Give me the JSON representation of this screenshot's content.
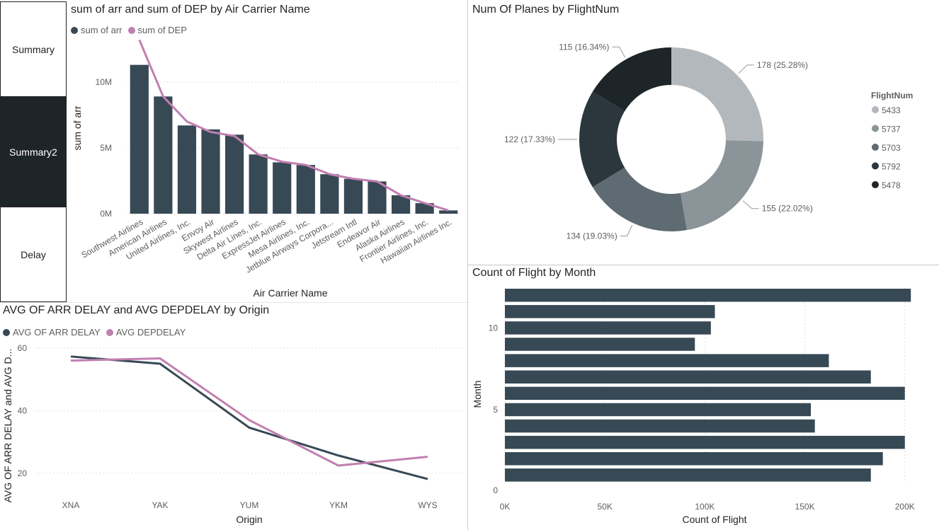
{
  "nav": {
    "summary": "Summary",
    "summary2": "Summary2",
    "delay": "Delay"
  },
  "chart_data": [
    {
      "type": "bar",
      "title": "sum of arr and sum of DEP by Air Carrier Name",
      "xlabel": "Air Carrier Name",
      "ylabel": "sum of arr",
      "ylim": [
        0,
        13000000
      ],
      "yticks": [
        "0M",
        "5M",
        "10M"
      ],
      "legend_position": "top-left",
      "categories": [
        "Southwest Airlines",
        "American Airlines",
        "United Airlines, Inc.",
        "Envoy Air",
        "Skywest Airlines",
        "Delta Air Lines, Inc.",
        "ExpressJet Airlines",
        "Mesa Airlines, Inc.",
        "Jetblue Airways Corpora...",
        "Jetstream Intl",
        "Endeavor Air",
        "Alaska Airlines",
        "Frontier Airlines, Inc.",
        "Hawaiian Airlines Inc."
      ],
      "series": [
        {
          "name": "sum of arr",
          "kind": "bar",
          "color": "#374955",
          "values": [
            11300000,
            8900000,
            6700000,
            6400000,
            6000000,
            4500000,
            3900000,
            3700000,
            3000000,
            2650000,
            2450000,
            1400000,
            800000,
            250000
          ]
        },
        {
          "name": "sum of DEP",
          "kind": "line",
          "color": "#c17fb0",
          "values": [
            13200000,
            8900000,
            7000000,
            6200000,
            5900000,
            4500000,
            3950000,
            3700000,
            3000000,
            2650000,
            2450000,
            1400000,
            800000,
            250000
          ]
        }
      ],
      "grid": true
    },
    {
      "type": "pie",
      "title": "Num Of Planes by FlightNum",
      "legend_title": "FlightNum",
      "legend_position": "right",
      "hole": true,
      "slices": [
        {
          "label": "5433",
          "value": 178,
          "display": "178 (25.28%)",
          "color": "#b3b8bc"
        },
        {
          "label": "5737",
          "value": 155,
          "display": "155 (22.02%)",
          "color": "#8b9499"
        },
        {
          "label": "5703",
          "value": 134,
          "display": "134 (19.03%)",
          "color": "#5f6b72"
        },
        {
          "label": "5792",
          "value": 122,
          "display": "122 (17.33%)",
          "color": "#2b363d"
        },
        {
          "label": "5478",
          "value": 115,
          "display": "115 (16.34%)",
          "color": "#1e2529"
        }
      ]
    },
    {
      "type": "line",
      "title": "AVG OF ARR DELAY and AVG DEPDELAY by Origin",
      "xlabel": "Origin",
      "ylabel": "AVG OF ARR DELAY and AVG D...",
      "ylim": [
        13,
        62
      ],
      "yticks": [
        20,
        40,
        60
      ],
      "legend_position": "top-left",
      "categories": [
        "XNA",
        "YAK",
        "YUM",
        "YKM",
        "WYS"
      ],
      "series": [
        {
          "name": "AVG OF ARR DELAY",
          "color": "#374955",
          "values": [
            57.3,
            55.0,
            34.6,
            25.7,
            18.2
          ]
        },
        {
          "name": "AVG DEPDELAY",
          "color": "#c17fb0",
          "values": [
            56.0,
            56.7,
            37.0,
            22.5,
            25.3
          ]
        }
      ],
      "grid": true
    },
    {
      "type": "bar",
      "orientation": "horizontal",
      "title": "Count of Flight by Month",
      "xlabel": "Count of Flight",
      "ylabel": "Month",
      "xlim": [
        0,
        210000
      ],
      "xticks": [
        "0K",
        "50K",
        "100K",
        "150K",
        "200K"
      ],
      "yticks": [
        0,
        5,
        10
      ],
      "categories": [
        12,
        11,
        10,
        9,
        8,
        7,
        6,
        5,
        4,
        3,
        2,
        1
      ],
      "values": [
        203000,
        105000,
        103000,
        95000,
        162000,
        183000,
        200000,
        153000,
        155000,
        200000,
        189000,
        183000
      ],
      "color": "#374955",
      "grid": true
    }
  ]
}
